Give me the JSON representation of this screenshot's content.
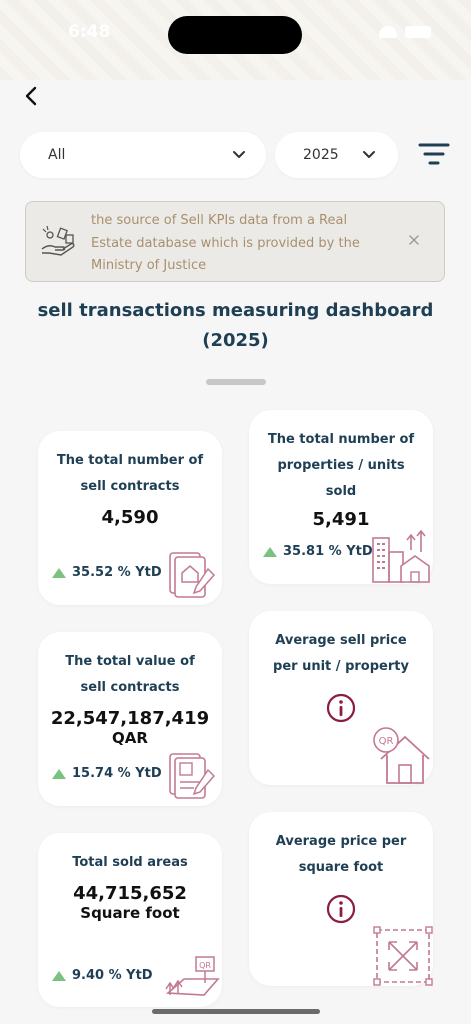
{
  "status_bar": {
    "time": "6:48"
  },
  "filters": {
    "category": "All",
    "year": "2025"
  },
  "notice": {
    "text": "the source of Sell KPIs data from a Real Estate database which is provided by the Ministry of Justice"
  },
  "page": {
    "title_line1": "sell transactions measuring dashboard",
    "title_line2": "(2025)"
  },
  "cards": {
    "contracts": {
      "title_line1": "The total number of",
      "title_line2": "sell contracts",
      "value": "4,590",
      "ytd": "35.52 % YtD"
    },
    "properties": {
      "title_line1": "The total number of",
      "title_line2": "properties / units",
      "title_line3": "sold",
      "value": "5,491",
      "ytd": "35.81 % YtD"
    },
    "value": {
      "title_line1": "The total value of",
      "title_line2": "sell contracts",
      "value": "22,547,187,419",
      "unit": "QAR",
      "ytd": "15.74 % YtD"
    },
    "avg_price": {
      "title_line1": "Average sell price",
      "title_line2": "per unit / property"
    },
    "areas": {
      "title_line1": "Total sold areas",
      "value": "44,715,652",
      "unit": "Square foot",
      "ytd": "9.40 % YtD"
    },
    "avg_sqft": {
      "title_line1": "Average price per",
      "title_line2": "square foot"
    }
  },
  "icons": {
    "back": "chevron-left-icon",
    "chevron": "chevron-down-icon",
    "filter": "filter-lines-icon",
    "close": "close-icon",
    "info": "info-circle-icon",
    "up": "triangle-up-icon"
  },
  "colors": {
    "accent_dark": "#1f3f55",
    "maroon": "#8b1e3f",
    "icon_pink": "#c27a93",
    "up_green": "#79c27f",
    "notice_text": "#a8906f"
  }
}
